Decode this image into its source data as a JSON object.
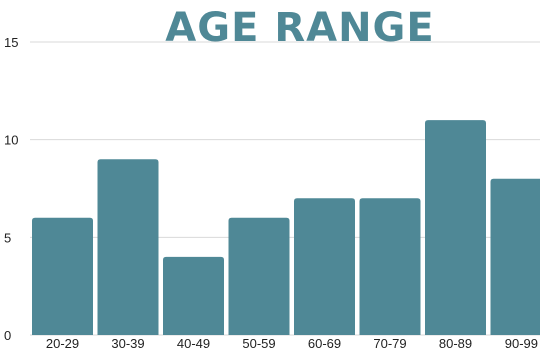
{
  "colors": {
    "bar": "#4f8896",
    "title": "#4f8896",
    "grid": "#d9d9d9",
    "text": "#222222"
  },
  "chart_data": {
    "type": "bar",
    "title": "AGE RANGE",
    "xlabel": "",
    "ylabel": "",
    "categories": [
      "20-29",
      "30-39",
      "40-49",
      "50-59",
      "60-69",
      "70-79",
      "80-89",
      "90-99"
    ],
    "values": [
      6,
      9,
      4,
      6,
      7,
      7,
      11,
      8
    ],
    "ylim": [
      0,
      15
    ],
    "yticks": [
      0,
      5,
      10,
      15
    ],
    "grid": true,
    "legend": "none"
  }
}
